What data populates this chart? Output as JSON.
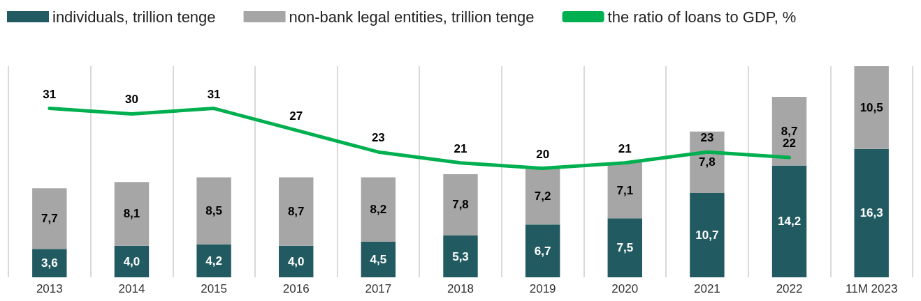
{
  "chart_data": {
    "type": "bar",
    "stacked": true,
    "categories": [
      "2013",
      "2014",
      "2015",
      "2016",
      "2017",
      "2018",
      "2019",
      "2020",
      "2021",
      "2022",
      "11M 2023"
    ],
    "series": [
      {
        "name": "individuals, trillion tenge",
        "color": "#215a60",
        "values": [
          3.6,
          4.0,
          4.2,
          4.0,
          4.5,
          5.3,
          6.7,
          7.5,
          10.7,
          14.2,
          16.3
        ],
        "value_labels": [
          "3,6",
          "4,0",
          "4,2",
          "4,0",
          "4,5",
          "5,3",
          "6,7",
          "7,5",
          "10,7",
          "14,2",
          "16,3"
        ]
      },
      {
        "name": "non-bank legal entities, trillion tenge",
        "color": "#a6a6a6",
        "values": [
          7.7,
          8.1,
          8.5,
          8.7,
          8.2,
          7.8,
          7.2,
          7.1,
          7.8,
          8.7,
          10.5
        ],
        "value_labels": [
          "7,7",
          "8,1",
          "8,5",
          "8,7",
          "8,2",
          "7,8",
          "7,2",
          "7,1",
          "7,8",
          "8,7",
          "10,5"
        ]
      },
      {
        "name": "the ratio of loans to GDP, %",
        "type": "line",
        "axis": "y2",
        "color": "#00b050",
        "values": [
          31,
          30,
          31,
          27,
          23,
          21,
          20,
          21,
          23,
          22,
          null
        ],
        "value_labels": [
          "31",
          "30",
          "31",
          "27",
          "23",
          "21",
          "20",
          "21",
          "23",
          "22",
          null
        ]
      }
    ],
    "legend": "top left",
    "grid": "x",
    "marker": "none"
  }
}
